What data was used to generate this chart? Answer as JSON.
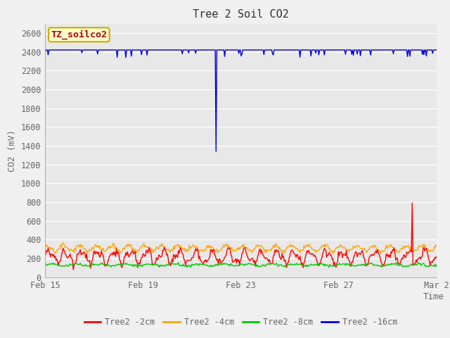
{
  "title": "Tree 2 Soil CO2",
  "ylabel": "CO2 (mV)",
  "xlabel": "Time",
  "ylim": [
    0,
    2700
  ],
  "yticks": [
    0,
    200,
    400,
    600,
    800,
    1000,
    1200,
    1400,
    1600,
    1800,
    2000,
    2200,
    2400,
    2600
  ],
  "fig_bg": "#f0f0f0",
  "plot_bg": "#e8e8e8",
  "series": {
    "red": {
      "label": "Tree2 -2cm",
      "color": "#ff0000"
    },
    "orange": {
      "label": "Tree2 -4cm",
      "color": "#ffa500"
    },
    "green": {
      "label": "Tree2 -8cm",
      "color": "#00cc00"
    },
    "blue": {
      "label": "Tree2 -16cm",
      "color": "#0000dd"
    }
  },
  "tz_label": "TZ_soilco2",
  "tz_bg": "#ffffcc",
  "tz_border": "#ccaa00",
  "tz_text_color": "#aa0000",
  "x_tick_labels": [
    "Feb 15",
    "Feb 19",
    "Feb 23",
    "Feb 27",
    "Mar 2"
  ],
  "x_tick_positions": [
    0,
    4,
    8,
    12,
    16
  ],
  "grid_color": "#ffffff",
  "tick_label_color": "#666666",
  "title_color": "#333333",
  "spine_color": "#aaaaaa"
}
